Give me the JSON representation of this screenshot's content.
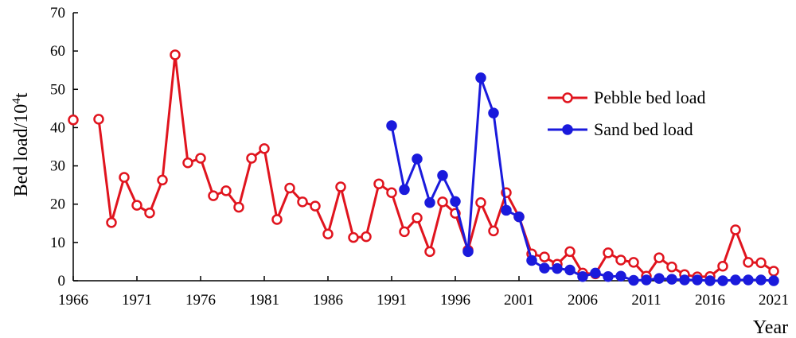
{
  "chart_data": {
    "type": "line",
    "xlabel": "Year",
    "ylabel_main": "Bed load/10",
    "ylabel_sup": "4",
    "ylabel_tail": "t",
    "xlim": [
      1966,
      2021
    ],
    "ylim": [
      0,
      70
    ],
    "x_ticks": [
      1966,
      1971,
      1976,
      1981,
      1986,
      1991,
      1996,
      2001,
      2006,
      2011,
      2016,
      2021
    ],
    "y_ticks": [
      0,
      10,
      20,
      30,
      40,
      50,
      60,
      70
    ],
    "grid": false,
    "legend_position": "right",
    "series": [
      {
        "name": "Pebble bed load",
        "color": "#e0141e",
        "marker": "open-circle",
        "segments": [
          [
            [
              1966,
              42
            ]
          ],
          [
            [
              1968,
              42.2
            ],
            [
              1969,
              15.2
            ],
            [
              1970,
              27
            ],
            [
              1971,
              19.7
            ],
            [
              1972,
              17.7
            ],
            [
              1973,
              26.3
            ],
            [
              1974,
              59
            ],
            [
              1975,
              30.8
            ],
            [
              1976,
              32
            ],
            [
              1977,
              22.2
            ],
            [
              1978,
              23.5
            ],
            [
              1979,
              19.2
            ],
            [
              1980,
              32
            ],
            [
              1981,
              34.5
            ],
            [
              1982,
              16
            ],
            [
              1983,
              24.2
            ],
            [
              1984,
              20.6
            ],
            [
              1985,
              19.5
            ],
            [
              1986,
              12.2
            ],
            [
              1987,
              24.5
            ],
            [
              1988,
              11.3
            ],
            [
              1989,
              11.5
            ],
            [
              1990,
              25.3
            ],
            [
              1991,
              23
            ],
            [
              1992,
              12.8
            ],
            [
              1993,
              16.4
            ],
            [
              1994,
              7.6
            ],
            [
              1995,
              20.6
            ],
            [
              1996,
              17.6
            ],
            [
              1997,
              8
            ],
            [
              1998,
              20.4
            ],
            [
              1999,
              13
            ],
            [
              2000,
              23
            ],
            [
              2001,
              16.7
            ],
            [
              2002,
              7
            ],
            [
              2003,
              6.2
            ],
            [
              2004,
              4.3
            ],
            [
              2005,
              7.6
            ],
            [
              2006,
              2
            ],
            [
              2007,
              1.8
            ],
            [
              2008,
              7.3
            ],
            [
              2009,
              5.4
            ],
            [
              2010,
              4.8
            ],
            [
              2011,
              1.2
            ],
            [
              2012,
              6
            ],
            [
              2013,
              3.6
            ],
            [
              2014,
              1.6
            ],
            [
              2015,
              1
            ],
            [
              2016,
              1.1
            ],
            [
              2017,
              3.8
            ],
            [
              2018,
              13.3
            ],
            [
              2019,
              4.8
            ],
            [
              2020,
              4.7
            ],
            [
              2021,
              2.5
            ]
          ]
        ]
      },
      {
        "name": "Sand bed load",
        "color": "#1a1adc",
        "marker": "filled-circle",
        "segments": [
          [
            [
              1991,
              40.5
            ],
            [
              1992,
              23.8
            ],
            [
              1993,
              31.8
            ],
            [
              1994,
              20.4
            ],
            [
              1995,
              27.5
            ],
            [
              1996,
              20.7
            ],
            [
              1997,
              7.6
            ],
            [
              1998,
              53
            ],
            [
              1999,
              43.8
            ],
            [
              2000,
              18.4
            ],
            [
              2001,
              16.7
            ],
            [
              2002,
              5.3
            ],
            [
              2003,
              3.3
            ],
            [
              2004,
              3.2
            ],
            [
              2005,
              2.8
            ],
            [
              2006,
              1.1
            ],
            [
              2007,
              2
            ],
            [
              2008,
              1.1
            ],
            [
              2009,
              1.2
            ],
            [
              2010,
              0.1
            ],
            [
              2011,
              0.2
            ],
            [
              2012,
              0.6
            ],
            [
              2013,
              0.4
            ],
            [
              2014,
              0.2
            ],
            [
              2015,
              0.2
            ],
            [
              2016,
              0
            ],
            [
              2017,
              0
            ],
            [
              2018,
              0.2
            ],
            [
              2019,
              0.2
            ],
            [
              2020,
              0.2
            ],
            [
              2021,
              0
            ]
          ]
        ]
      }
    ]
  }
}
